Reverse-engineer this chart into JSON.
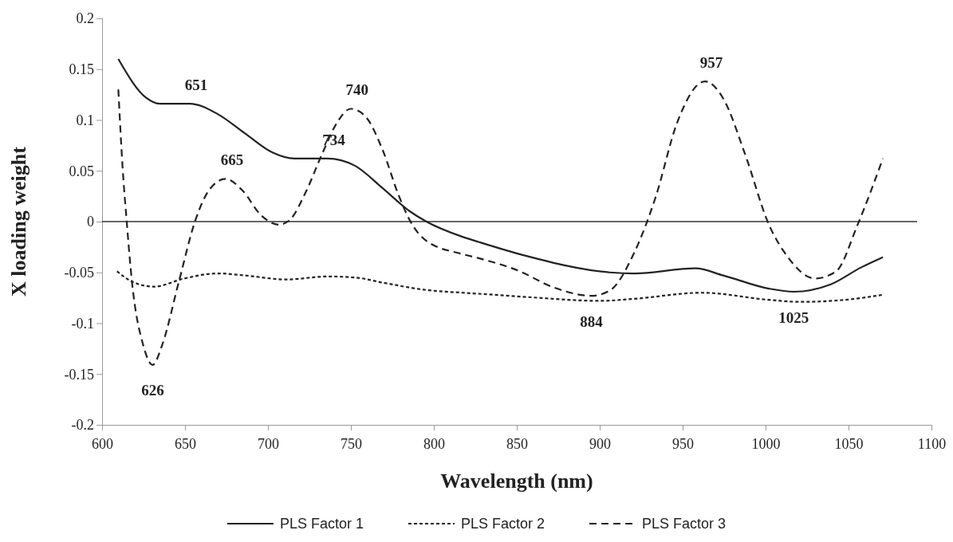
{
  "chart_data": {
    "type": "line",
    "xlabel": "Wavelength (nm)",
    "ylabel": "X loading weight",
    "xlim": [
      600,
      1100
    ],
    "xticks": [
      600,
      650,
      700,
      750,
      800,
      850,
      900,
      950,
      1000,
      1050,
      1100
    ],
    "ylim": [
      -0.2,
      0.2
    ],
    "yticks": [
      -0.2,
      -0.15,
      -0.1,
      -0.05,
      0,
      0.05,
      0.1,
      0.15,
      0.2
    ],
    "grid": false,
    "legend": "bottom",
    "marker": "none",
    "ref_lines": [
      {
        "axis": "y",
        "value": 0,
        "label": null,
        "color": "#333333",
        "line_style": "solid"
      }
    ],
    "annotations": [
      {
        "text": "651",
        "x": 652.9,
        "y": 0.116
      },
      {
        "text": "665",
        "x": 674.5,
        "y": 0.042
      },
      {
        "text": "740",
        "x": 749.9,
        "y": 0.111
      },
      {
        "text": "734",
        "x": 735.8,
        "y": 0.062
      },
      {
        "text": "626",
        "x": 630.5,
        "y": -0.141
      },
      {
        "text": "884",
        "x": 895,
        "y": -0.073
      },
      {
        "text": "957",
        "x": 963.5,
        "y": 0.138
      },
      {
        "text": "1025",
        "x": 1017,
        "y": -0.069
      }
    ],
    "series": [
      {
        "name": "PLS Factor 1",
        "color": "#222222",
        "line_style": "solid",
        "x": [
          609.8,
          626.4,
          634.7,
          652.9,
          669.5,
          686,
          702.7,
          716,
          735.8,
          752.4,
          769,
          785.6,
          795.5,
          817.3,
          827,
          854,
          906,
          920.7,
          957.7,
          974.5,
          1002,
          1017,
          1039,
          1057.7,
          1070.7
        ],
        "values": [
          0.16,
          0.122,
          0.116,
          0.116,
          0.106,
          0.087,
          0.068,
          0.062,
          0.062,
          0.055,
          0.033,
          0.01,
          0,
          -0.015,
          -0.02,
          -0.033,
          -0.05,
          -0.051,
          -0.046,
          -0.053,
          -0.066,
          -0.069,
          -0.062,
          -0.045,
          -0.035
        ]
      },
      {
        "name": "PLS Factor 2",
        "color": "#222222",
        "line_style": "dotted",
        "x": [
          609,
          618,
          631.3,
          649.6,
          669.5,
          686,
          711,
          735.8,
          752.4,
          769,
          793.9,
          817.3,
          827,
          854,
          900.5,
          920.7,
          961.5,
          1002,
          1020.7,
          1048,
          1070.7
        ],
        "values": [
          -0.049,
          -0.059,
          -0.064,
          -0.056,
          -0.051,
          -0.053,
          -0.057,
          -0.054,
          -0.055,
          -0.06,
          -0.067,
          -0.07,
          -0.071,
          -0.074,
          -0.078,
          -0.076,
          -0.07,
          -0.077,
          -0.079,
          -0.077,
          -0.072
        ]
      },
      {
        "name": "PLS Factor 3",
        "color": "#222222",
        "line_style": "dashed",
        "x": [
          609.8,
          612.3,
          614.8,
          618,
          624.7,
          630.5,
          636.3,
          646.3,
          656.2,
          664.5,
          674.5,
          684.4,
          696,
          706.8,
          713.4,
          722.5,
          732.5,
          740.8,
          749.9,
          759,
          769,
          779,
          785.6,
          795.5,
          817.3,
          827,
          850.5,
          872.6,
          895,
          906,
          920.7,
          933.7,
          946.6,
          963.5,
          974.5,
          987.5,
          1002,
          1013,
          1029.8,
          1042.5,
          1055.5,
          1070.7
        ],
        "values": [
          0.13,
          0.055,
          0.001,
          -0.059,
          -0.121,
          -0.141,
          -0.121,
          -0.059,
          0.001,
          0.031,
          0.042,
          0.031,
          0.006,
          -0.003,
          0.002,
          0.028,
          0.066,
          0.095,
          0.111,
          0.103,
          0.071,
          0.025,
          0.001,
          -0.019,
          -0.032,
          -0.036,
          -0.048,
          -0.065,
          -0.073,
          -0.068,
          -0.031,
          0.024,
          0.097,
          0.138,
          0.121,
          0.067,
          -0.003,
          -0.034,
          -0.056,
          -0.049,
          -0.003,
          0.062
        ]
      }
    ]
  }
}
